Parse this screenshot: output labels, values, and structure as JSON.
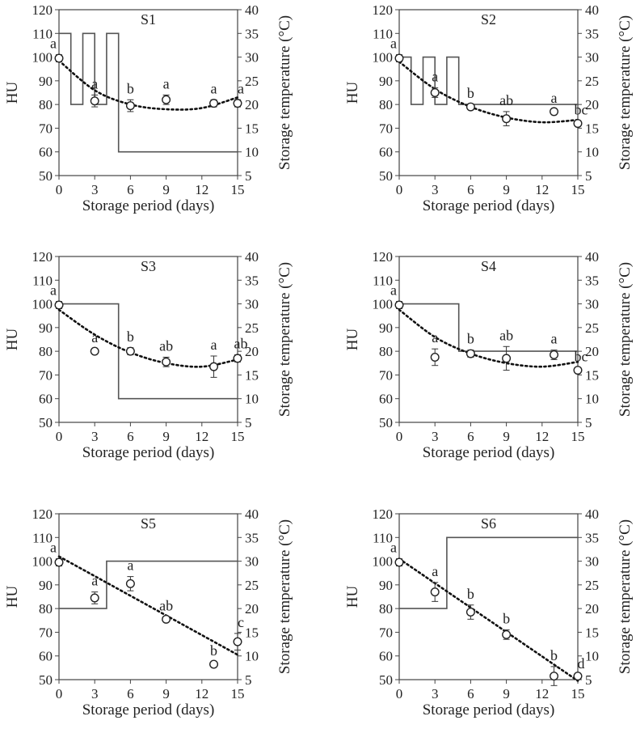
{
  "figure": {
    "left_axis_label": "HU",
    "right_axis_label": "Storage temperature (°C)",
    "x_axis_label": "Storage period (days)"
  },
  "chart_data": [
    {
      "type": "line",
      "title": "S1",
      "xlabel": "Storage period (days)",
      "ylabel": "HU",
      "y2label": "Storage temperature (°C)",
      "xlim": [
        0,
        15
      ],
      "ylim": [
        50,
        120
      ],
      "y2lim": [
        5,
        40
      ],
      "xticks": [
        0,
        3,
        6,
        9,
        12,
        15
      ],
      "yticks": [
        50,
        60,
        70,
        80,
        90,
        100,
        110,
        120
      ],
      "y2ticks": [
        5,
        10,
        15,
        20,
        25,
        30,
        35,
        40
      ],
      "grid": false,
      "hu_points": [
        {
          "x": 0,
          "y": 99.5,
          "err": 1.5,
          "letter": "a"
        },
        {
          "x": 3,
          "y": 81.5,
          "err": 2.5,
          "letter": "a"
        },
        {
          "x": 6,
          "y": 79.5,
          "err": 2.5,
          "letter": "b"
        },
        {
          "x": 9,
          "y": 82,
          "err": 2.0,
          "letter": "a"
        },
        {
          "x": 13,
          "y": 80.5,
          "err": 1.5,
          "letter": "a"
        },
        {
          "x": 15,
          "y": 80.5,
          "err": 1.5,
          "letter": "a"
        }
      ],
      "hu_trend": [
        [
          0,
          98.5
        ],
        [
          3,
          86
        ],
        [
          6,
          80
        ],
        [
          9,
          78
        ],
        [
          12,
          78.5
        ],
        [
          15,
          83
        ]
      ],
      "temperature_profile": [
        [
          0,
          35
        ],
        [
          1,
          35
        ],
        [
          1,
          20
        ],
        [
          2,
          20
        ],
        [
          2,
          35
        ],
        [
          3,
          35
        ],
        [
          3,
          20
        ],
        [
          4,
          20
        ],
        [
          4,
          35
        ],
        [
          5,
          35
        ],
        [
          5,
          10
        ],
        [
          15,
          10
        ]
      ]
    },
    {
      "type": "line",
      "title": "S2",
      "xlabel": "Storage period (days)",
      "ylabel": "HU",
      "y2label": "Storage temperature (°C)",
      "xlim": [
        0,
        15
      ],
      "ylim": [
        50,
        120
      ],
      "y2lim": [
        5,
        40
      ],
      "xticks": [
        0,
        3,
        6,
        9,
        12,
        15
      ],
      "yticks": [
        50,
        60,
        70,
        80,
        90,
        100,
        110,
        120
      ],
      "y2ticks": [
        5,
        10,
        15,
        20,
        25,
        30,
        35,
        40
      ],
      "grid": false,
      "hu_points": [
        {
          "x": 0,
          "y": 99.5,
          "err": 1.5,
          "letter": "a"
        },
        {
          "x": 3,
          "y": 85,
          "err": 2.0,
          "letter": "a"
        },
        {
          "x": 6,
          "y": 79,
          "err": 1.0,
          "letter": "b"
        },
        {
          "x": 9,
          "y": 74,
          "err": 3.0,
          "letter": "ab"
        },
        {
          "x": 13,
          "y": 77,
          "err": 1.0,
          "letter": "a"
        },
        {
          "x": 15,
          "y": 72,
          "err": 1.0,
          "letter": "bc"
        }
      ],
      "hu_trend": [
        [
          0,
          98
        ],
        [
          3,
          86.5
        ],
        [
          6,
          79
        ],
        [
          9,
          74.5
        ],
        [
          12,
          72.5
        ],
        [
          15,
          73.5
        ]
      ],
      "temperature_profile": [
        [
          0,
          30
        ],
        [
          1,
          30
        ],
        [
          1,
          20
        ],
        [
          2,
          20
        ],
        [
          2,
          30
        ],
        [
          3,
          30
        ],
        [
          3,
          20
        ],
        [
          4,
          20
        ],
        [
          4,
          30
        ],
        [
          5,
          30
        ],
        [
          5,
          20
        ],
        [
          15,
          20
        ]
      ]
    },
    {
      "type": "line",
      "title": "S3",
      "xlabel": "Storage period (days)",
      "ylabel": "HU",
      "y2label": "Storage temperature (°C)",
      "xlim": [
        0,
        15
      ],
      "ylim": [
        50,
        120
      ],
      "y2lim": [
        5,
        40
      ],
      "xticks": [
        0,
        3,
        6,
        9,
        12,
        15
      ],
      "yticks": [
        50,
        60,
        70,
        80,
        90,
        100,
        110,
        120
      ],
      "y2ticks": [
        5,
        10,
        15,
        20,
        25,
        30,
        35,
        40
      ],
      "grid": false,
      "hu_points": [
        {
          "x": 0,
          "y": 99.5,
          "err": 1.5,
          "letter": "a"
        },
        {
          "x": 3,
          "y": 80,
          "err": 1.0,
          "letter": "a"
        },
        {
          "x": 6,
          "y": 80,
          "err": 1.5,
          "letter": "b"
        },
        {
          "x": 9,
          "y": 75.5,
          "err": 2.0,
          "letter": "ab"
        },
        {
          "x": 13,
          "y": 73.5,
          "err": 4.5,
          "letter": "a"
        },
        {
          "x": 15,
          "y": 77,
          "err": 1.5,
          "letter": "ab"
        }
      ],
      "hu_trend": [
        [
          0,
          97.5
        ],
        [
          3,
          87
        ],
        [
          6,
          79.5
        ],
        [
          9,
          75
        ],
        [
          12,
          73.5
        ],
        [
          15,
          76.5
        ]
      ],
      "temperature_profile": [
        [
          0,
          30
        ],
        [
          5,
          30
        ],
        [
          5,
          10
        ],
        [
          15,
          10
        ]
      ]
    },
    {
      "type": "line",
      "title": "S4",
      "xlabel": "Storage period (days)",
      "ylabel": "HU",
      "y2label": "Storage temperature (°C)",
      "xlim": [
        0,
        15
      ],
      "ylim": [
        50,
        120
      ],
      "y2lim": [
        5,
        40
      ],
      "xticks": [
        0,
        3,
        6,
        9,
        12,
        15
      ],
      "yticks": [
        50,
        60,
        70,
        80,
        90,
        100,
        110,
        120
      ],
      "y2ticks": [
        5,
        10,
        15,
        20,
        25,
        30,
        35,
        40
      ],
      "grid": false,
      "hu_points": [
        {
          "x": 0,
          "y": 99.5,
          "err": 1.5,
          "letter": "a"
        },
        {
          "x": 3,
          "y": 77.5,
          "err": 3.5,
          "letter": "a"
        },
        {
          "x": 6,
          "y": 79,
          "err": 1.5,
          "letter": "b"
        },
        {
          "x": 9,
          "y": 77,
          "err": 5.0,
          "letter": "ab"
        },
        {
          "x": 13,
          "y": 78.5,
          "err": 2.0,
          "letter": "a"
        },
        {
          "x": 15,
          "y": 72,
          "err": 1.0,
          "letter": "bc"
        }
      ],
      "hu_trend": [
        [
          0,
          97.5
        ],
        [
          3,
          86
        ],
        [
          6,
          79
        ],
        [
          9,
          75
        ],
        [
          12,
          73.5
        ],
        [
          15,
          75.5
        ]
      ],
      "temperature_profile": [
        [
          0,
          30
        ],
        [
          5,
          30
        ],
        [
          5,
          20
        ],
        [
          15,
          20
        ]
      ]
    },
    {
      "type": "line",
      "title": "S5",
      "xlabel": "Storage period (days)",
      "ylabel": "HU",
      "y2label": "Storage temperature (°C)",
      "xlim": [
        0,
        15
      ],
      "ylim": [
        50,
        120
      ],
      "y2lim": [
        5,
        40
      ],
      "xticks": [
        0,
        3,
        6,
        9,
        12,
        15
      ],
      "yticks": [
        50,
        60,
        70,
        80,
        90,
        100,
        110,
        120
      ],
      "y2ticks": [
        5,
        10,
        15,
        20,
        25,
        30,
        35,
        40
      ],
      "grid": false,
      "hu_points": [
        {
          "x": 0,
          "y": 99.5,
          "err": 1.5,
          "letter": "a"
        },
        {
          "x": 3,
          "y": 84.5,
          "err": 2.5,
          "letter": "a"
        },
        {
          "x": 6,
          "y": 90.5,
          "err": 3.0,
          "letter": "a"
        },
        {
          "x": 9,
          "y": 75.5,
          "err": 1.0,
          "letter": "ab"
        },
        {
          "x": 13,
          "y": 56.5,
          "err": 1.0,
          "letter": "b"
        },
        {
          "x": 15,
          "y": 66,
          "err": 3.5,
          "letter": "c"
        }
      ],
      "hu_trend": [
        [
          0,
          102
        ],
        [
          15,
          60.5
        ]
      ],
      "temperature_profile": [
        [
          0,
          20
        ],
        [
          4,
          20
        ],
        [
          4,
          30
        ],
        [
          15,
          30
        ]
      ]
    },
    {
      "type": "line",
      "title": "S6",
      "xlabel": "Storage period (days)",
      "ylabel": "HU",
      "y2label": "Storage temperature (°C)",
      "xlim": [
        0,
        15
      ],
      "ylim": [
        50,
        120
      ],
      "y2lim": [
        5,
        40
      ],
      "xticks": [
        0,
        3,
        6,
        9,
        12,
        15
      ],
      "yticks": [
        50,
        60,
        70,
        80,
        90,
        100,
        110,
        120
      ],
      "y2ticks": [
        5,
        10,
        15,
        20,
        25,
        30,
        35,
        40
      ],
      "grid": false,
      "hu_points": [
        {
          "x": 0,
          "y": 99.5,
          "err": 1.5,
          "letter": "a"
        },
        {
          "x": 3,
          "y": 87,
          "err": 4.0,
          "letter": "a"
        },
        {
          "x": 6,
          "y": 78.5,
          "err": 3.0,
          "letter": "b"
        },
        {
          "x": 9,
          "y": 69,
          "err": 2.0,
          "letter": "b"
        },
        {
          "x": 13,
          "y": 51.5,
          "err": 4.0,
          "letter": "b"
        },
        {
          "x": 15,
          "y": 51.5,
          "err": 0.5,
          "letter": "d"
        }
      ],
      "hu_trend": [
        [
          0,
          101
        ],
        [
          15,
          49.5
        ]
      ],
      "temperature_profile": [
        [
          0,
          20
        ],
        [
          4,
          20
        ],
        [
          4,
          35
        ],
        [
          15,
          35
        ]
      ]
    }
  ]
}
